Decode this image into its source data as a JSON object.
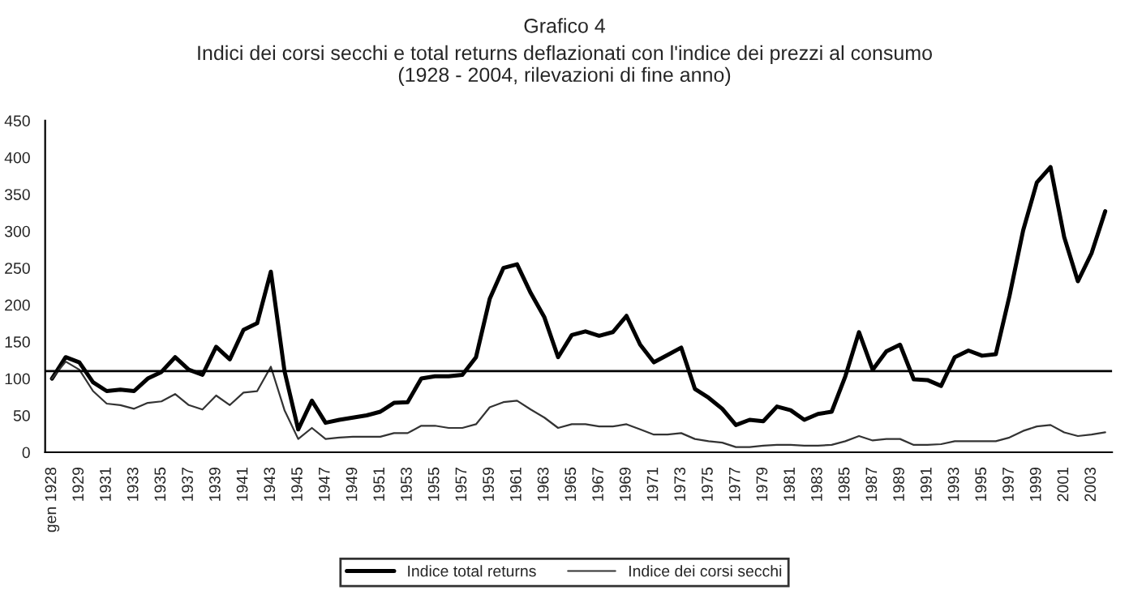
{
  "chart_data": {
    "type": "line",
    "title": "Grafico 4",
    "subtitle": "Indici dei corsi secchi e total returns deflazionati con l'indice dei prezzi al consumo\n(1928 - 2004, rilevazioni di fine anno)",
    "categories": [
      "gen 1928",
      null,
      "1929",
      null,
      "1931",
      null,
      "1933",
      null,
      "1935",
      null,
      "1937",
      null,
      "1939",
      null,
      "1941",
      null,
      "1943",
      null,
      "1945",
      null,
      "1947",
      null,
      "1949",
      null,
      "1951",
      null,
      "1953",
      null,
      "1955",
      null,
      "1957",
      null,
      "1959",
      null,
      "1961",
      null,
      "1963",
      null,
      "1965",
      null,
      "1967",
      null,
      "1969",
      null,
      "1971",
      null,
      "1973",
      null,
      "1975",
      null,
      "1977",
      null,
      "1979",
      null,
      "1981",
      null,
      "1983",
      null,
      "1985",
      null,
      "1987",
      null,
      "1989",
      null,
      "1991",
      null,
      "1993",
      null,
      "1995",
      null,
      "1997",
      null,
      "1999",
      null,
      "2001",
      null,
      "2003",
      null
    ],
    "series": [
      {
        "name": "Indice total returns",
        "color": "#000000",
        "values": [
          100,
          129,
          122,
          95,
          83,
          85,
          83,
          100,
          109,
          129,
          112,
          105,
          143,
          126,
          166,
          175,
          245,
          110,
          31,
          70,
          40,
          44,
          47,
          50,
          55,
          67,
          68,
          100,
          103,
          103,
          105,
          129,
          208,
          250,
          255,
          216,
          183,
          129,
          159,
          164,
          158,
          163,
          185,
          146,
          122,
          132,
          142,
          86,
          74,
          59,
          37,
          44,
          42,
          62,
          57,
          44,
          52,
          55,
          103,
          163,
          112,
          137,
          146,
          99,
          98,
          90,
          129,
          138,
          131,
          133,
          212,
          301,
          366,
          387,
          292,
          232,
          270,
          327
        ]
      },
      {
        "name": "Indice dei corsi secchi",
        "color": "#333333",
        "values": [
          100,
          123,
          112,
          83,
          66,
          64,
          59,
          67,
          69,
          79,
          64,
          58,
          77,
          64,
          81,
          83,
          116,
          57,
          18,
          33,
          18,
          20,
          21,
          21,
          21,
          26,
          26,
          36,
          36,
          33,
          33,
          38,
          61,
          68,
          70,
          58,
          47,
          33,
          38,
          38,
          35,
          35,
          38,
          31,
          24,
          24,
          26,
          18,
          15,
          13,
          7,
          7,
          9,
          10,
          10,
          9,
          9,
          10,
          15,
          22,
          16,
          18,
          18,
          10,
          10,
          11,
          15,
          15,
          15,
          15,
          20,
          29,
          35,
          37,
          27,
          22,
          24,
          27
        ]
      }
    ],
    "ref_lines": [
      {
        "axis": "y",
        "value": 110,
        "color": "#000000"
      }
    ],
    "ylim": [
      0,
      450
    ],
    "yticks": [
      0,
      50,
      100,
      150,
      200,
      250,
      300,
      350,
      400,
      450
    ],
    "grid": false,
    "legend": "bottom",
    "marker": "none",
    "line_style": "solid"
  }
}
